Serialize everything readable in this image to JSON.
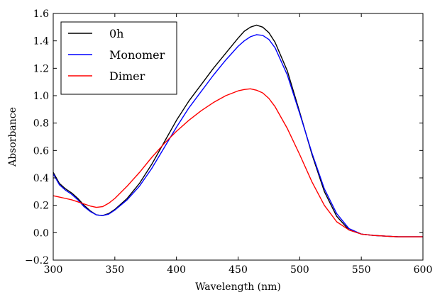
{
  "chart_data": {
    "type": "line",
    "xlabel": "Wavelength (nm)",
    "ylabel": "Absorbance",
    "xlim": [
      300,
      600
    ],
    "ylim": [
      -0.2,
      1.6
    ],
    "xticks": [
      300,
      350,
      400,
      450,
      500,
      550,
      600
    ],
    "xtick_labels": [
      "300",
      "350",
      "400",
      "450",
      "500",
      "550",
      "600"
    ],
    "yticks": [
      -0.2,
      0.0,
      0.2,
      0.4,
      0.6,
      0.8,
      1.0,
      1.2,
      1.4,
      1.6
    ],
    "ytick_labels": [
      "−0.2",
      "0.0",
      "0.2",
      "0.4",
      "0.6",
      "0.8",
      "1.0",
      "1.2",
      "1.4",
      "1.6"
    ],
    "grid": false,
    "legend": "top-left",
    "series": [
      {
        "name": "0h",
        "color": "#000000",
        "x": [
          300,
          305,
          310,
          315,
          320,
          325,
          330,
          335,
          340,
          345,
          350,
          360,
          370,
          380,
          390,
          400,
          410,
          420,
          430,
          440,
          450,
          455,
          460,
          465,
          470,
          475,
          480,
          490,
          500,
          510,
          520,
          530,
          540,
          550,
          560,
          570,
          580,
          590,
          600
        ],
        "y": [
          0.44,
          0.36,
          0.32,
          0.29,
          0.25,
          0.2,
          0.16,
          0.13,
          0.125,
          0.14,
          0.17,
          0.25,
          0.36,
          0.5,
          0.66,
          0.82,
          0.96,
          1.08,
          1.2,
          1.31,
          1.42,
          1.47,
          1.5,
          1.515,
          1.5,
          1.46,
          1.39,
          1.18,
          0.88,
          0.57,
          0.3,
          0.12,
          0.02,
          -0.01,
          -0.02,
          -0.025,
          -0.03,
          -0.03,
          -0.03
        ]
      },
      {
        "name": "Monomer",
        "color": "#0000ff",
        "x": [
          300,
          305,
          310,
          315,
          320,
          325,
          330,
          335,
          340,
          345,
          350,
          360,
          370,
          380,
          390,
          400,
          410,
          420,
          430,
          440,
          450,
          455,
          460,
          465,
          470,
          475,
          480,
          490,
          500,
          510,
          520,
          530,
          540,
          550,
          560,
          570,
          580,
          590,
          600
        ],
        "y": [
          0.43,
          0.35,
          0.31,
          0.28,
          0.24,
          0.19,
          0.155,
          0.13,
          0.125,
          0.135,
          0.165,
          0.24,
          0.34,
          0.47,
          0.62,
          0.77,
          0.91,
          1.03,
          1.15,
          1.26,
          1.36,
          1.4,
          1.43,
          1.445,
          1.44,
          1.41,
          1.35,
          1.15,
          0.87,
          0.58,
          0.32,
          0.14,
          0.03,
          -0.01,
          -0.02,
          -0.025,
          -0.03,
          -0.03,
          -0.03
        ]
      },
      {
        "name": "Dimer",
        "color": "#ff0000",
        "x": [
          300,
          305,
          310,
          315,
          320,
          325,
          330,
          335,
          340,
          345,
          350,
          360,
          370,
          380,
          390,
          400,
          410,
          420,
          430,
          440,
          450,
          455,
          460,
          465,
          470,
          475,
          480,
          490,
          500,
          510,
          520,
          530,
          540,
          550,
          560,
          570,
          580,
          590,
          600
        ],
        "y": [
          0.27,
          0.26,
          0.25,
          0.24,
          0.225,
          0.21,
          0.195,
          0.185,
          0.19,
          0.215,
          0.25,
          0.34,
          0.44,
          0.55,
          0.65,
          0.74,
          0.82,
          0.89,
          0.95,
          1.0,
          1.035,
          1.045,
          1.05,
          1.04,
          1.02,
          0.98,
          0.92,
          0.76,
          0.57,
          0.37,
          0.2,
          0.08,
          0.02,
          -0.01,
          -0.02,
          -0.025,
          -0.03,
          -0.03,
          -0.03
        ]
      }
    ]
  }
}
